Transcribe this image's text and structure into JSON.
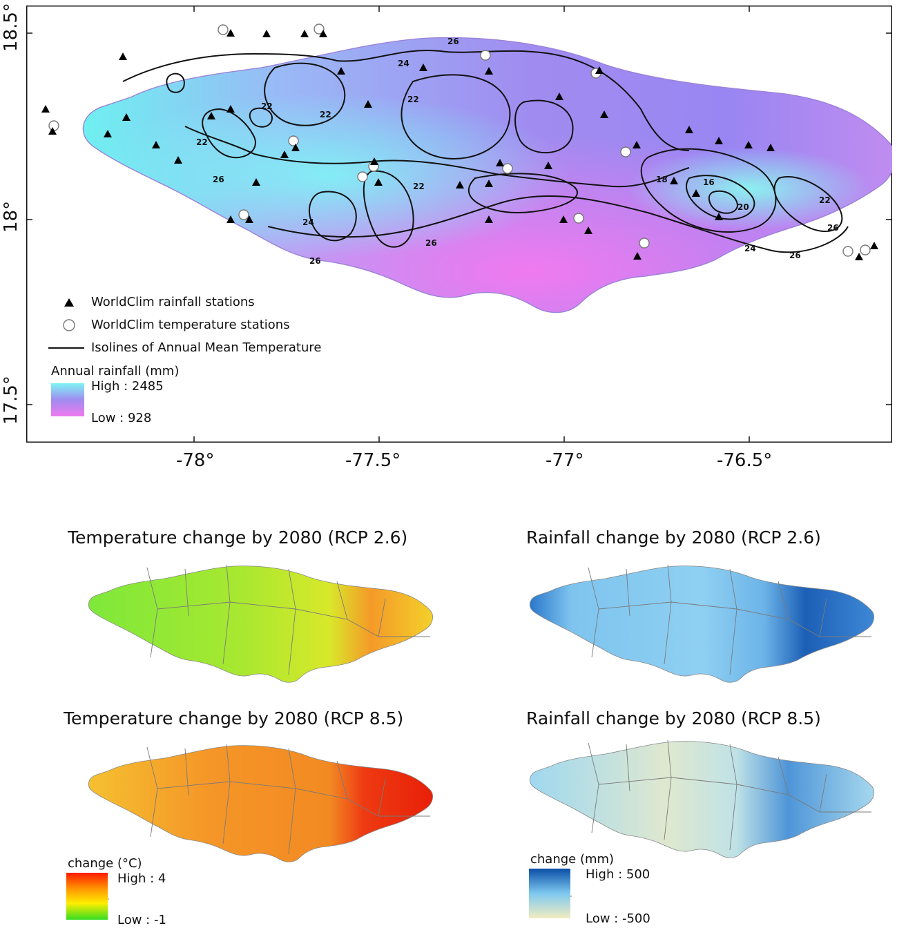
{
  "main_map": {
    "latitude_ticks": [
      "18.5°",
      "18°",
      "17.5°"
    ],
    "longitude_ticks": [
      "-78°",
      "-77.5°",
      "-77°",
      "-76.5°"
    ],
    "legend": {
      "rainfall_stations": "WorldClim rainfall stations",
      "temperature_stations": "WorldClim temperature stations",
      "isolines": "Isolines of Annual Mean Temperature",
      "colorbar_title": "Annual rainfall (mm)",
      "high": "High : 2485",
      "low": "Low : 928"
    },
    "isoline_labels": [
      "26",
      "24",
      "22",
      "22",
      "22",
      "22",
      "26",
      "24",
      "26",
      "22",
      "20",
      "18",
      "16",
      "22",
      "26",
      "26",
      "24",
      "26"
    ],
    "colors": {
      "high": "#7fffff",
      "mid": "#9a8cf0",
      "low": "#f07af0"
    }
  },
  "panels": {
    "temp_rcp26": {
      "title": "Temperature change by 2080 (RCP 2.6)"
    },
    "rain_rcp26": {
      "title": "Rainfall change by 2080 (RCP 2.6)"
    },
    "temp_rcp85": {
      "title": "Temperature change by 2080 (RCP 8.5)"
    },
    "rain_rcp85": {
      "title": "Rainfall change by 2080 (RCP 8.5)"
    }
  },
  "temp_colorbar": {
    "title": "change (°C)",
    "high": "High : 4",
    "low": "Low : -1",
    "colors": [
      "#ff1a00",
      "#ff9900",
      "#ffee00",
      "#33dd22"
    ]
  },
  "rain_colorbar": {
    "title": "change (mm)",
    "high": "High : 500",
    "low": "Low : -500",
    "colors": [
      "#0a4fa6",
      "#7ec8f0",
      "#f2ecc0"
    ]
  }
}
